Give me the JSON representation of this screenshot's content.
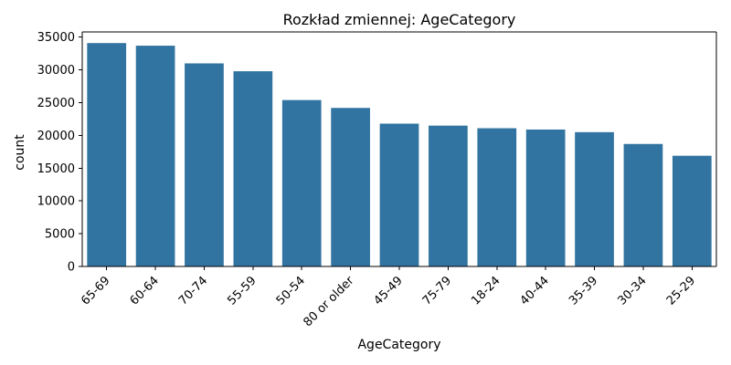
{
  "chart_data": {
    "type": "bar",
    "title": "Rozkład zmiennej: AgeCategory",
    "xlabel": "AgeCategory",
    "ylabel": "count",
    "categories": [
      "65-69",
      "60-64",
      "70-74",
      "55-59",
      "50-54",
      "80 or older",
      "45-49",
      "75-79",
      "18-24",
      "40-44",
      "35-39",
      "30-34",
      "25-29"
    ],
    "values": [
      34100,
      33700,
      31000,
      29800,
      25400,
      24200,
      21800,
      21500,
      21100,
      20900,
      20500,
      18700,
      16900
    ],
    "ylim": [
      0,
      35800
    ],
    "yticks": [
      0,
      5000,
      10000,
      15000,
      20000,
      25000,
      30000,
      35000
    ],
    "bar_color": "#3274a1",
    "grid": false,
    "legend": false
  }
}
